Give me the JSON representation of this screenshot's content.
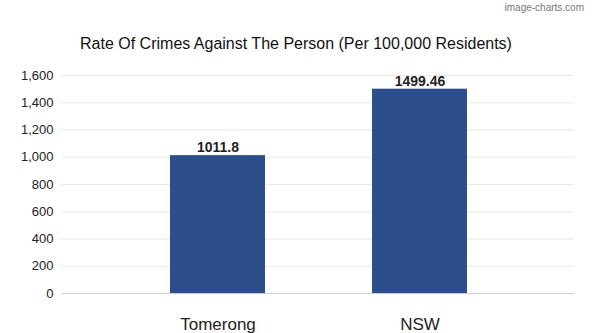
{
  "chart_data": {
    "type": "bar",
    "title": "Rate Of Crimes Against The Person (Per 100,000 Residents)",
    "categories": [
      "Tomerong",
      "NSW"
    ],
    "values": [
      1011.8,
      1499.46
    ],
    "color": "#2c4f8c",
    "ylim": [
      0,
      1600
    ],
    "yticks": [
      0,
      200,
      400,
      600,
      800,
      1000,
      1200,
      1400,
      1600
    ],
    "grid": true,
    "data_labels": true,
    "annotations": [
      "image-charts.com"
    ]
  }
}
